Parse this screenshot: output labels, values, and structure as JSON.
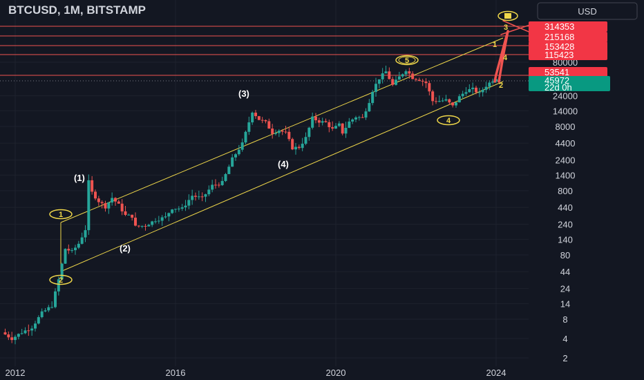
{
  "header": {
    "title": "BTCUSD, 1M, BITSTAMP",
    "currency_button": "USD"
  },
  "colors": {
    "background": "#131722",
    "up": "#26a69a",
    "down": "#ef5350",
    "channel": "#f0d84a",
    "resistance": "#ef5350",
    "badge_red": "#f23645",
    "badge_green": "#089981",
    "text": "#d1d4dc"
  },
  "chart_data": {
    "type": "candlestick",
    "title": "BTCUSD, 1M, BITSTAMP",
    "y_scale": "log",
    "y_ticks": [
      "80000",
      "24000",
      "14000",
      "8000",
      "4400",
      "2400",
      "1400",
      "800",
      "440",
      "240",
      "140",
      "80",
      "44",
      "24",
      "14",
      "8",
      "4",
      "2"
    ],
    "x_ticks": [
      "2012",
      "2016",
      "2020",
      "2024"
    ],
    "last_price": "45972",
    "countdown": "22d 0h",
    "targets": [
      "314353",
      "215168",
      "153428",
      "115423",
      "53541"
    ],
    "wave_labels_primary": [
      "(1)",
      "(2)",
      "(3)",
      "(4)"
    ],
    "wave_labels_circle": [
      "1",
      "2",
      "5",
      "4"
    ],
    "projection_labels": [
      "3",
      "1",
      "4",
      "2"
    ],
    "monthly_trend": [
      [
        "2011-09",
        5
      ],
      [
        "2011-12",
        4
      ],
      [
        "2012-03",
        5
      ],
      [
        "2012-06",
        6
      ],
      [
        "2012-09",
        10
      ],
      [
        "2012-12",
        13
      ],
      [
        "2013-02",
        33
      ],
      [
        "2013-04",
        100
      ],
      [
        "2013-06",
        90
      ],
      [
        "2013-08",
        120
      ],
      [
        "2013-10",
        200
      ],
      [
        "2013-11",
        1100
      ],
      [
        "2013-12",
        750
      ],
      [
        "2014-02",
        550
      ],
      [
        "2014-04",
        450
      ],
      [
        "2014-06",
        620
      ],
      [
        "2014-08",
        480
      ],
      [
        "2014-10",
        330
      ],
      [
        "2014-12",
        320
      ],
      [
        "2015-01",
        220
      ],
      [
        "2015-04",
        230
      ],
      [
        "2015-07",
        280
      ],
      [
        "2015-10",
        310
      ],
      [
        "2015-12",
        430
      ],
      [
        "2016-03",
        420
      ],
      [
        "2016-06",
        670
      ],
      [
        "2016-09",
        610
      ],
      [
        "2016-12",
        960
      ],
      [
        "2017-03",
        1070
      ],
      [
        "2017-06",
        2500
      ],
      [
        "2017-09",
        4300
      ],
      [
        "2017-12",
        13800
      ],
      [
        "2018-02",
        10300
      ],
      [
        "2018-04",
        9200
      ],
      [
        "2018-06",
        6400
      ],
      [
        "2018-08",
        7000
      ],
      [
        "2018-10",
        6300
      ],
      [
        "2018-12",
        3700
      ],
      [
        "2019-02",
        3800
      ],
      [
        "2019-04",
        5300
      ],
      [
        "2019-06",
        10800
      ],
      [
        "2019-08",
        9600
      ],
      [
        "2019-10",
        9200
      ],
      [
        "2019-12",
        7200
      ],
      [
        "2020-02",
        8500
      ],
      [
        "2020-03",
        6400
      ],
      [
        "2020-05",
        9400
      ],
      [
        "2020-07",
        11300
      ],
      [
        "2020-09",
        10800
      ],
      [
        "2020-11",
        19700
      ],
      [
        "2020-12",
        29000
      ],
      [
        "2021-02",
        45000
      ],
      [
        "2021-04",
        57000
      ],
      [
        "2021-06",
        35000
      ],
      [
        "2021-08",
        47000
      ],
      [
        "2021-10",
        61000
      ],
      [
        "2021-12",
        46000
      ],
      [
        "2022-02",
        43000
      ],
      [
        "2022-04",
        38000
      ],
      [
        "2022-06",
        19900
      ],
      [
        "2022-08",
        20000
      ],
      [
        "2022-10",
        20500
      ],
      [
        "2022-12",
        16500
      ],
      [
        "2023-02",
        23000
      ],
      [
        "2023-04",
        29000
      ],
      [
        "2023-06",
        30400
      ],
      [
        "2023-08",
        26000
      ],
      [
        "2023-10",
        34500
      ],
      [
        "2023-12",
        42000
      ],
      [
        "2024-01",
        45972
      ]
    ]
  }
}
